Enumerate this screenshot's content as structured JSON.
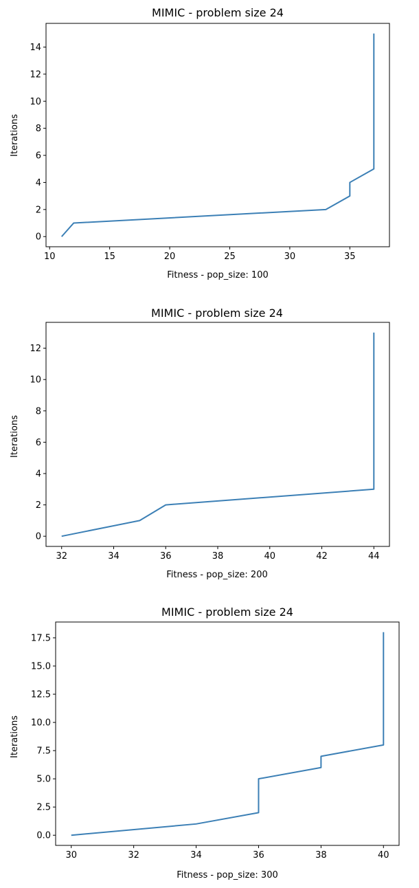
{
  "chart_data": [
    {
      "type": "line",
      "title": "MIMIC - problem size 24",
      "xlabel": "Fitness - pop_size: 100",
      "ylabel": "Iterations",
      "xlim": [
        9.7,
        38.3
      ],
      "ylim": [
        -0.75,
        15.75
      ],
      "xticks": [
        10,
        15,
        20,
        25,
        30,
        35
      ],
      "xtick_labels": [
        "10",
        "15",
        "20",
        "25",
        "30",
        "35"
      ],
      "yticks": [
        0,
        2,
        4,
        6,
        8,
        10,
        12,
        14
      ],
      "ytick_labels": [
        "0",
        "2",
        "4",
        "6",
        "8",
        "10",
        "12",
        "14"
      ],
      "grid": false,
      "series": [
        {
          "color": "#3b7fb5",
          "x": [
            11,
            12,
            33,
            35,
            35,
            37,
            37
          ],
          "y": [
            0,
            1,
            2,
            3,
            4,
            5,
            15
          ]
        }
      ]
    },
    {
      "type": "line",
      "title": "MIMIC - problem size 24",
      "xlabel": "Fitness - pop_size: 200",
      "ylabel": "Iterations",
      "xlim": [
        31.4,
        44.6
      ],
      "ylim": [
        -0.65,
        13.65
      ],
      "xticks": [
        32,
        34,
        36,
        38,
        40,
        42,
        44
      ],
      "xtick_labels": [
        "32",
        "34",
        "36",
        "38",
        "40",
        "42",
        "44"
      ],
      "yticks": [
        0,
        2,
        4,
        6,
        8,
        10,
        12
      ],
      "ytick_labels": [
        "0",
        "2",
        "4",
        "6",
        "8",
        "10",
        "12"
      ],
      "grid": false,
      "series": [
        {
          "color": "#3b7fb5",
          "x": [
            32,
            35,
            36,
            44,
            44
          ],
          "y": [
            0,
            1,
            2,
            3,
            13
          ]
        }
      ]
    },
    {
      "type": "line",
      "title": "MIMIC - problem size 24",
      "xlabel": "Fitness - pop_size: 300",
      "ylabel": "Iterations",
      "xlim": [
        29.5,
        40.5
      ],
      "ylim": [
        -0.9,
        18.9
      ],
      "xticks": [
        30,
        32,
        34,
        36,
        38,
        40
      ],
      "xtick_labels": [
        "30",
        "32",
        "34",
        "36",
        "38",
        "40"
      ],
      "yticks": [
        0,
        2.5,
        5,
        7.5,
        10,
        12.5,
        15,
        17.5
      ],
      "ytick_labels": [
        "0.0",
        "2.5",
        "5.0",
        "7.5",
        "10.0",
        "12.5",
        "15.0",
        "17.5"
      ],
      "grid": false,
      "series": [
        {
          "color": "#3b7fb5",
          "x": [
            30,
            34,
            36,
            36,
            38,
            38,
            40,
            40
          ],
          "y": [
            0,
            1,
            2,
            5,
            6,
            7,
            8,
            18
          ]
        }
      ]
    }
  ]
}
